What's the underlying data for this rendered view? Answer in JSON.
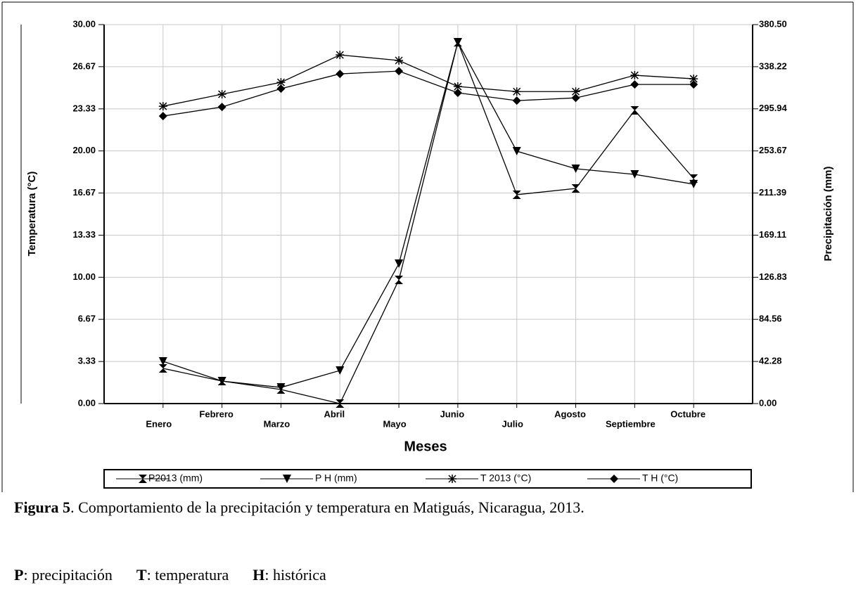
{
  "chart_data": {
    "type": "line",
    "x_label": "Meses",
    "y_label": "Temperatura (°C)",
    "y2_label": "Precipitación (mm)",
    "categories": [
      "Enero",
      "Febrero",
      "Marzo",
      "Abril",
      "Mayo",
      "Junio",
      "Julio",
      "Agosto",
      "Septiembre",
      "Octubre"
    ],
    "ylim": [
      0,
      30
    ],
    "yticks": [
      {
        "value": 0,
        "label": "0.00"
      },
      {
        "value": 3.33,
        "label": "3.33"
      },
      {
        "value": 6.67,
        "label": "6.67"
      },
      {
        "value": 10,
        "label": "10.00"
      },
      {
        "value": 13.33,
        "label": "13.33"
      },
      {
        "value": 16.67,
        "label": "16.67"
      },
      {
        "value": 20,
        "label": "20.00"
      },
      {
        "value": 23.33,
        "label": "23.33"
      },
      {
        "value": 26.67,
        "label": "26.67"
      },
      {
        "value": 30,
        "label": "30.00"
      }
    ],
    "y2lim": [
      0,
      380.5
    ],
    "y2ticks": [
      {
        "value": 0,
        "label": "0.00"
      },
      {
        "value": 42.28,
        "label": "42.28"
      },
      {
        "value": 84.56,
        "label": "84.56"
      },
      {
        "value": 126.83,
        "label": "126.83"
      },
      {
        "value": 169.11,
        "label": "169.11"
      },
      {
        "value": 211.39,
        "label": "211.39"
      },
      {
        "value": 253.67,
        "label": "253.67"
      },
      {
        "value": 295.94,
        "label": "295.94"
      },
      {
        "value": 338.22,
        "label": "338.22"
      },
      {
        "value": 380.5,
        "label": "380.50"
      }
    ],
    "grid": true,
    "legend": "bottom",
    "series": [
      {
        "name": "P2013 (mm)",
        "color": "#000000",
        "marker": "hourglass",
        "axis": "y2",
        "values": [
          35.3,
          22.6,
          14.1,
          0,
          124.2,
          362.8,
          209.7,
          216.0,
          294.4,
          225.9
        ]
      },
      {
        "name": "P H (mm)",
        "color": "#000000",
        "marker": "triangle-down",
        "axis": "y2",
        "values": [
          42.4,
          22.6,
          16.2,
          33.2,
          140.5,
          362.8,
          253.4,
          235.8,
          230.1,
          220.3
        ]
      },
      {
        "name": "T 2013 (°C)",
        "color": "#000000",
        "marker": "asterisk",
        "values": [
          23.54,
          24.49,
          25.43,
          27.6,
          27.16,
          25.1,
          24.7,
          24.7,
          25.99,
          25.71
        ]
      },
      {
        "name": "T H (°C)",
        "color": "#000000",
        "marker": "diamond",
        "values": [
          22.76,
          23.48,
          24.93,
          26.1,
          26.32,
          24.6,
          23.98,
          24.2,
          25.26,
          25.26
        ]
      }
    ]
  },
  "caption": {
    "label": "Figura 5",
    "text": ". Comportamiento de la precipitación y temperatura en Matiguás, Nicaragua, 2013."
  },
  "notes": [
    {
      "key": "P",
      "text": ": precipitación"
    },
    {
      "key": "T",
      "text": ": temperatura"
    },
    {
      "key": "H",
      "text": ": histórica"
    }
  ]
}
